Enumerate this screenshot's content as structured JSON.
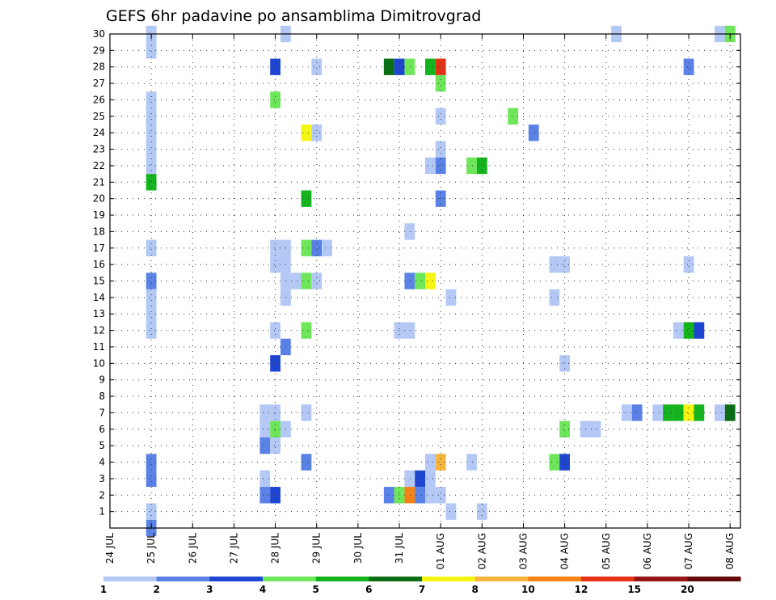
{
  "chart_data": {
    "type": "heatmap",
    "title": "GEFS 6hr padavine po ansamblima Dimitrovgrad",
    "xlabel": "",
    "ylabel": "",
    "x_range": [
      0,
      61
    ],
    "y_range": [
      0,
      30
    ],
    "x_ticks": [
      {
        "pos": 0,
        "label": "24 JUL"
      },
      {
        "pos": 4,
        "label": "25 JUL"
      },
      {
        "pos": 8,
        "label": "26 JUL"
      },
      {
        "pos": 12,
        "label": "27 JUL"
      },
      {
        "pos": 16,
        "label": "28 JUL"
      },
      {
        "pos": 20,
        "label": "29 JUL"
      },
      {
        "pos": 24,
        "label": "30 JUL"
      },
      {
        "pos": 28,
        "label": "31 JUL"
      },
      {
        "pos": 32,
        "label": "01 AUG"
      },
      {
        "pos": 36,
        "label": "02 AUG"
      },
      {
        "pos": 40,
        "label": "03 AUG"
      },
      {
        "pos": 44,
        "label": "04 AUG"
      },
      {
        "pos": 48,
        "label": "05 AUG"
      },
      {
        "pos": 52,
        "label": "06 AUG"
      },
      {
        "pos": 56,
        "label": "07 AUG"
      },
      {
        "pos": 60,
        "label": "08 AUG"
      }
    ],
    "y_ticks": [
      "1",
      "2",
      "3",
      "4",
      "5",
      "6",
      "7",
      "8",
      "9",
      "10",
      "11",
      "12",
      "13",
      "14",
      "15",
      "16",
      "17",
      "18",
      "19",
      "20",
      "21",
      "22",
      "23",
      "24",
      "25",
      "26",
      "27",
      "28",
      "29",
      "30"
    ],
    "grid": true,
    "colorbar": {
      "labels": [
        "1",
        "2",
        "3",
        "4",
        "5",
        "6",
        "7",
        "8",
        "10",
        "12",
        "15",
        "20"
      ],
      "colors": [
        "#b4c8f5",
        "#5a82e6",
        "#1e46d2",
        "#6ee65a",
        "#14b41e",
        "#0a6e14",
        "#f5f514",
        "#f5b43c",
        "#f58214",
        "#e63214",
        "#961414",
        "#640a0a"
      ]
    },
    "cells": [
      [
        4,
        30,
        0
      ],
      [
        17,
        30,
        0
      ],
      [
        49,
        30,
        0
      ],
      [
        59,
        30,
        0
      ],
      [
        60,
        30,
        3
      ],
      [
        4,
        29,
        0
      ],
      [
        16,
        28,
        2
      ],
      [
        20,
        28,
        0
      ],
      [
        27,
        28,
        5
      ],
      [
        28,
        28,
        2
      ],
      [
        29,
        28,
        3
      ],
      [
        31,
        28,
        4
      ],
      [
        32,
        28,
        9
      ],
      [
        56,
        28,
        1
      ],
      [
        32,
        27,
        3
      ],
      [
        4,
        26,
        0
      ],
      [
        16,
        26,
        3
      ],
      [
        4,
        25,
        0
      ],
      [
        32,
        25,
        0
      ],
      [
        39,
        25,
        3
      ],
      [
        4,
        24,
        0
      ],
      [
        19,
        24,
        6
      ],
      [
        20,
        24,
        0
      ],
      [
        41,
        24,
        1
      ],
      [
        4,
        23,
        0
      ],
      [
        32,
        23,
        0
      ],
      [
        4,
        22,
        0
      ],
      [
        31,
        22,
        0
      ],
      [
        32,
        22,
        1
      ],
      [
        35,
        22,
        3
      ],
      [
        36,
        22,
        4
      ],
      [
        4,
        21,
        4
      ],
      [
        19,
        20,
        4
      ],
      [
        32,
        20,
        1
      ],
      [
        29,
        18,
        0
      ],
      [
        4,
        17,
        0
      ],
      [
        16,
        17,
        0
      ],
      [
        17,
        17,
        0
      ],
      [
        19,
        17,
        3
      ],
      [
        20,
        17,
        1
      ],
      [
        21,
        17,
        0
      ],
      [
        16,
        16,
        0
      ],
      [
        17,
        16,
        0
      ],
      [
        43,
        16,
        0
      ],
      [
        44,
        16,
        0
      ],
      [
        56,
        16,
        0
      ],
      [
        4,
        15,
        1
      ],
      [
        17,
        15,
        0
      ],
      [
        18,
        15,
        0
      ],
      [
        19,
        15,
        3
      ],
      [
        20,
        15,
        0
      ],
      [
        29,
        15,
        1
      ],
      [
        30,
        15,
        3
      ],
      [
        31,
        15,
        6
      ],
      [
        4,
        14,
        0
      ],
      [
        17,
        14,
        0
      ],
      [
        33,
        14,
        0
      ],
      [
        43,
        14,
        0
      ],
      [
        4,
        13,
        0
      ],
      [
        4,
        12,
        0
      ],
      [
        16,
        12,
        0
      ],
      [
        19,
        12,
        3
      ],
      [
        28,
        12,
        0
      ],
      [
        29,
        12,
        0
      ],
      [
        55,
        12,
        0
      ],
      [
        56,
        12,
        4
      ],
      [
        57,
        12,
        2
      ],
      [
        17,
        11,
        1
      ],
      [
        16,
        10,
        2
      ],
      [
        44,
        10,
        0
      ],
      [
        15,
        7,
        0
      ],
      [
        16,
        7,
        0
      ],
      [
        19,
        7,
        0
      ],
      [
        50,
        7,
        0
      ],
      [
        51,
        7,
        1
      ],
      [
        53,
        7,
        0
      ],
      [
        54,
        7,
        4
      ],
      [
        55,
        7,
        4
      ],
      [
        56,
        7,
        6
      ],
      [
        57,
        7,
        4
      ],
      [
        59,
        7,
        0
      ],
      [
        60,
        7,
        5
      ],
      [
        15,
        6,
        0
      ],
      [
        16,
        6,
        3
      ],
      [
        17,
        6,
        0
      ],
      [
        44,
        6,
        3
      ],
      [
        46,
        6,
        0
      ],
      [
        47,
        6,
        0
      ],
      [
        15,
        5,
        1
      ],
      [
        16,
        5,
        0
      ],
      [
        4,
        4,
        1
      ],
      [
        19,
        4,
        1
      ],
      [
        31,
        4,
        0
      ],
      [
        32,
        4,
        7
      ],
      [
        35,
        4,
        0
      ],
      [
        43,
        4,
        3
      ],
      [
        44,
        4,
        2
      ],
      [
        4,
        3,
        1
      ],
      [
        15,
        3,
        0
      ],
      [
        29,
        3,
        0
      ],
      [
        30,
        3,
        2
      ],
      [
        31,
        3,
        0
      ],
      [
        15,
        2,
        1
      ],
      [
        16,
        2,
        2
      ],
      [
        27,
        2,
        1
      ],
      [
        28,
        2,
        3
      ],
      [
        29,
        2,
        8
      ],
      [
        30,
        2,
        1
      ],
      [
        31,
        2,
        0
      ],
      [
        32,
        2,
        0
      ],
      [
        4,
        1,
        0
      ],
      [
        33,
        1,
        0
      ],
      [
        36,
        1,
        0
      ],
      [
        4,
        0,
        1
      ]
    ]
  }
}
